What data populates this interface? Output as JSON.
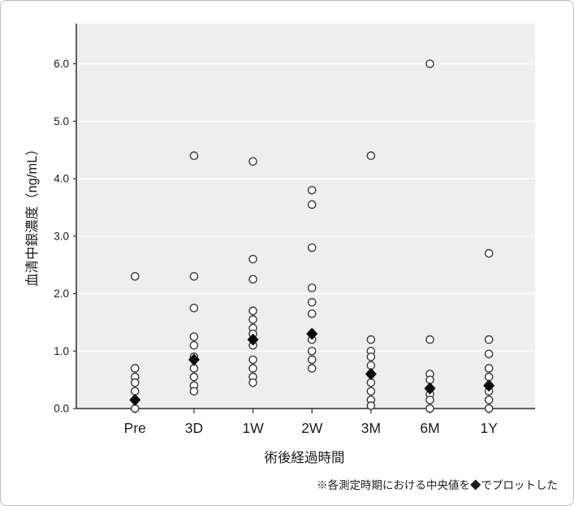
{
  "chart_data": {
    "type": "scatter",
    "title": "",
    "xlabel": "術後経過時間",
    "ylabel": "血清中銀濃度（ng/mL）",
    "note": "※各測定時期における中央値を◆でプロットした",
    "categories": [
      "Pre",
      "3D",
      "1W",
      "2W",
      "3M",
      "6M",
      "1Y"
    ],
    "yticks": [
      0.0,
      1.0,
      2.0,
      3.0,
      4.0,
      5.0,
      6.0
    ],
    "ylim": [
      0.0,
      6.7
    ],
    "grid": "horizontal",
    "legend_position": "none",
    "series": [
      {
        "name": "individual-measurements",
        "marker": "open-circle",
        "values_by_category": [
          [
            2.3,
            0.7,
            0.55,
            0.45,
            0.3,
            0.0
          ],
          [
            4.4,
            2.3,
            1.75,
            1.25,
            1.1,
            0.9,
            0.7,
            0.55,
            0.4,
            0.3
          ],
          [
            4.3,
            2.6,
            2.25,
            1.7,
            1.55,
            1.4,
            1.3,
            1.1,
            0.85,
            0.7,
            0.55,
            0.45
          ],
          [
            3.8,
            3.55,
            2.8,
            2.1,
            1.85,
            1.65,
            1.2,
            1.0,
            0.85,
            0.7
          ],
          [
            4.4,
            1.2,
            1.0,
            0.9,
            0.75,
            0.6,
            0.45,
            0.3,
            0.15,
            0.05
          ],
          [
            6.0,
            1.2,
            0.6,
            0.5,
            0.35,
            0.25,
            0.15,
            0.0
          ],
          [
            2.7,
            1.2,
            0.95,
            0.7,
            0.55,
            0.4,
            0.3,
            0.15,
            0.0
          ]
        ]
      },
      {
        "name": "median",
        "marker": "filled-diamond",
        "values": [
          0.15,
          0.85,
          1.2,
          1.3,
          0.6,
          0.35,
          0.4
        ]
      }
    ],
    "colors": {
      "plot_bg": "#eeeeee",
      "gridline": "#ffffff",
      "axis": "#2e2e2e",
      "circle_stroke": "#3a3a3a",
      "circle_fill": "#ffffff",
      "diamond_fill": "#0b0b0b",
      "text": "#1c1c1c",
      "frame_border": "#b9b9b9"
    }
  }
}
